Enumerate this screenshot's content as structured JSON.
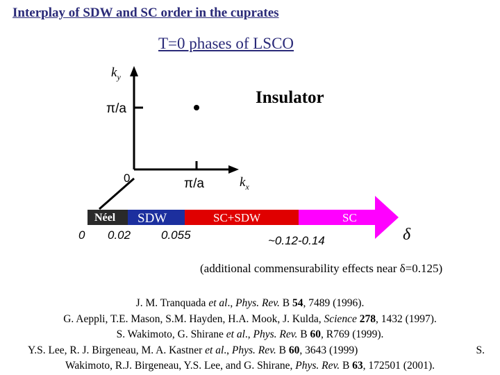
{
  "header": {
    "title": "Interplay of SDW and SC order in the cuprates",
    "subtitle": "T=0 phases of LSCO"
  },
  "diagram": {
    "ky_label": "k",
    "ky_sub": "y",
    "kx_label": "k",
    "kx_sub": "x",
    "y_tick_label": "π/a",
    "x_tick_label": "π/a",
    "origin_label": "0",
    "region_label": "Insulator"
  },
  "phase_bar": {
    "segments": [
      {
        "label": "Néel",
        "color": "#2a2a2a",
        "start": 0.0,
        "end": 0.02
      },
      {
        "label": "SDW",
        "color": "#1c2f9e",
        "start": 0.02,
        "end": 0.055
      },
      {
        "label": "SC+SDW",
        "color": "#e00000",
        "start": 0.055,
        "end": 0.13
      },
      {
        "label": "SC",
        "color": "#ff00ff",
        "start": 0.13,
        "end": 0.22
      }
    ],
    "tick_labels": [
      "0",
      "0.02",
      "0.055",
      "~0.12-0.14"
    ],
    "axis_symbol": "δ"
  },
  "note": {
    "text": "(additional commensurability effects near δ=0.125)"
  },
  "references": [
    {
      "authors": "J. M. Tranquada ",
      "etal": "et al",
      "rest": "., ",
      "journal": "Phys. Rev.",
      "vol_prefix": " B ",
      "volume": "54",
      "tail": ", 7489 (1996)."
    },
    {
      "authors": "G. Aeppli, T.E. Mason, S.M. Hayden, H.A. Mook, J. Kulda, ",
      "journal": "Science",
      "vol_prefix": " ",
      "volume": "278",
      "tail": ", 1432 (1997)."
    },
    {
      "authors": "S. Wakimoto, G. Shirane ",
      "etal": "et al",
      "rest": "., ",
      "journal": "Phys. Rev.",
      "vol_prefix": " B ",
      "volume": "60",
      "tail": ", R769 (1999)."
    },
    {
      "authors": "Y.S. Lee, R. J. Birgeneau, M. A. Kastner ",
      "etal": "et al",
      "rest": "., ",
      "journal": "Phys. Rev.",
      "vol_prefix": " B ",
      "volume": "60",
      "tail": ", 3643 (1999)",
      "trailing": "S."
    },
    {
      "authors": "Wakimoto, R.J. Birgeneau, Y.S. Lee, and G. Shirane, ",
      "journal": "Phys. Rev.",
      "vol_prefix": " B ",
      "volume": "63",
      "tail": ", 172501 (2001)."
    }
  ]
}
